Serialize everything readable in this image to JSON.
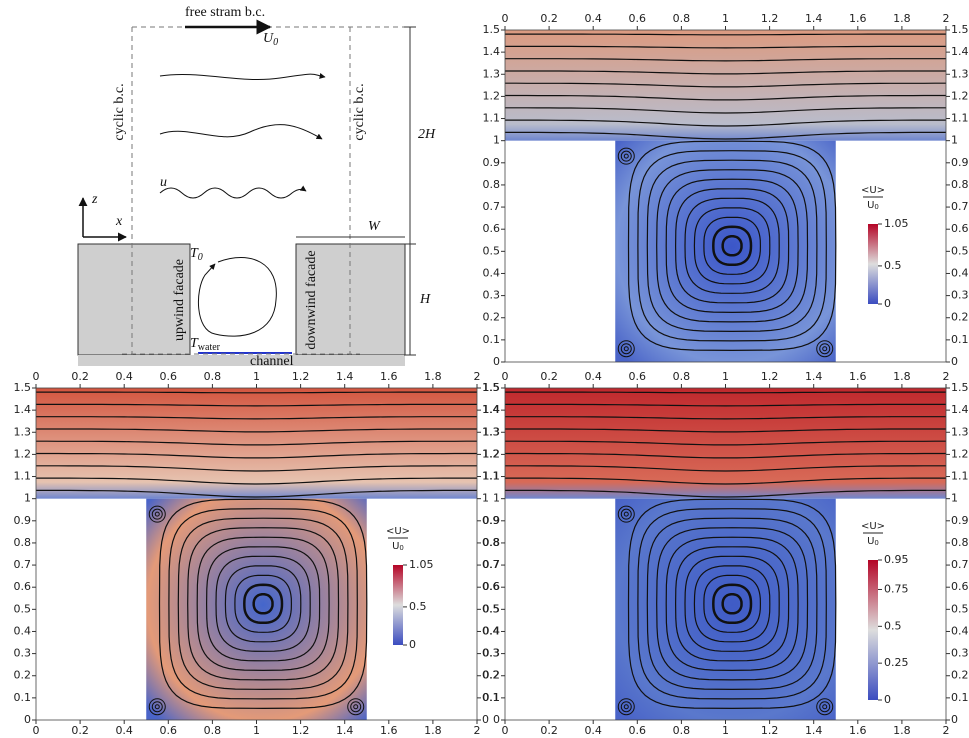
{
  "schematic": {
    "top_bc": "free stram b.c.",
    "free_velocity": {
      "base": "U",
      "sub": "0"
    },
    "left_bc": "cyclic b.c.",
    "right_bc": "cyclic b.c.",
    "domain_height": "2H",
    "velocity": "u",
    "z_axis": "z",
    "x_axis": "x",
    "width": "W",
    "canyon_height": "H",
    "top_temperature": {
      "base": "T",
      "sub": "0"
    },
    "upwind": "upwind facade",
    "downwind": "downwind facade",
    "water_temperature": {
      "base": "T",
      "sub": "water"
    },
    "channel": "channel"
  },
  "chart_data": [
    {
      "type": "streamline",
      "xlim": [
        0,
        2
      ],
      "ylim": [
        0,
        1.5
      ],
      "xticks": [
        0,
        0.2,
        0.4,
        0.6,
        0.8,
        1,
        1.2,
        1.4,
        1.6,
        1.8,
        2
      ],
      "yticks": [
        0,
        0.1,
        0.2,
        0.3,
        0.4,
        0.5,
        0.6,
        0.7,
        0.8,
        0.9,
        1,
        1.1,
        1.2,
        1.3,
        1.4,
        1.5
      ],
      "colorbar": {
        "numerator": "<U>",
        "denominator": {
          "base": "U",
          "sub": "0"
        },
        "clim": [
          0,
          1.05
        ],
        "ticks": [
          0,
          0.5,
          1.05
        ]
      }
    },
    {
      "type": "streamline",
      "xlim": [
        0,
        2
      ],
      "ylim": [
        0,
        1.5
      ],
      "xticks": [
        0,
        0.2,
        0.4,
        0.6,
        0.8,
        1,
        1.2,
        1.4,
        1.6,
        1.8,
        2
      ],
      "yticks": [
        0,
        0.1,
        0.2,
        0.3,
        0.4,
        0.5,
        0.6,
        0.7,
        0.8,
        0.9,
        1,
        1.1,
        1.2,
        1.3,
        1.4,
        1.5
      ],
      "colorbar": {
        "numerator": "<U>",
        "denominator": {
          "base": "U",
          "sub": "0"
        },
        "clim": [
          0,
          1.05
        ],
        "ticks": [
          0,
          0.5,
          1.05
        ]
      }
    },
    {
      "type": "streamline",
      "xlim": [
        0,
        2
      ],
      "ylim": [
        0,
        1.5
      ],
      "xticks": [
        0,
        0.2,
        0.4,
        0.6,
        0.8,
        1,
        1.2,
        1.4,
        1.6,
        1.8,
        2
      ],
      "yticks": [
        0,
        0.1,
        0.2,
        0.3,
        0.4,
        0.5,
        0.6,
        0.7,
        0.8,
        0.9,
        1,
        1.1,
        1.2,
        1.3,
        1.4,
        1.5
      ],
      "colorbar": {
        "numerator": "<U>",
        "denominator": {
          "base": "U",
          "sub": "0"
        },
        "clim": [
          0,
          0.95
        ],
        "ticks": [
          0,
          0.25,
          0.5,
          0.75,
          0.95
        ]
      }
    }
  ]
}
